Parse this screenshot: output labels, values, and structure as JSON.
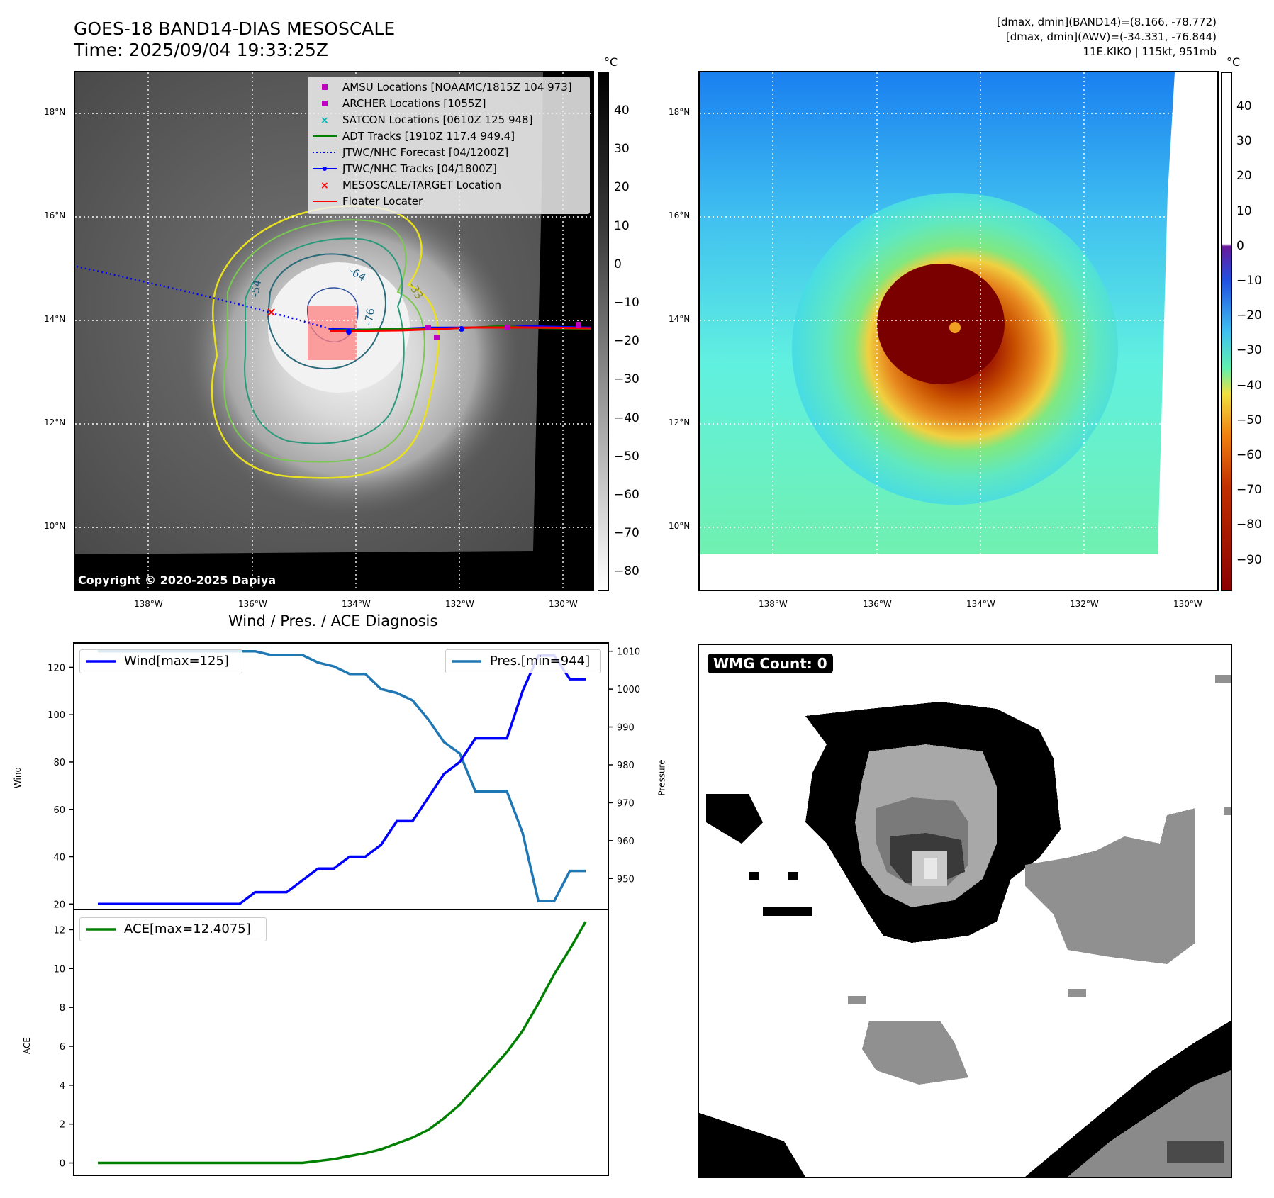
{
  "header": {
    "title_line1": "GOES-18 BAND14-DIAS MESOSCALE",
    "title_line2": "Time: 2025/09/04 19:33:25Z",
    "info_line1": "[dmax, dmin](BAND14)=(8.166, -78.772)",
    "info_line2": "[dmax, dmin](AWV)=(-34.331, -76.844)",
    "info_line3": "11E.KIKO | 115kt, 951mb"
  },
  "map": {
    "lat_labels": [
      "18°N",
      "16°N",
      "14°N",
      "12°N",
      "10°N"
    ],
    "lon_labels": [
      "138°W",
      "136°W",
      "134°W",
      "132°W",
      "130°W"
    ],
    "contour_labels": [
      "-64",
      "-54",
      "-76",
      "-33"
    ],
    "copyright": "Copyright © 2020-2025 Dapiya",
    "colorbar_unit": "°C",
    "colorbar_ticks_gray": [
      "40",
      "30",
      "20",
      "10",
      "0",
      "−10",
      "−20",
      "−30",
      "−40",
      "−50",
      "−60",
      "−70",
      "−80"
    ],
    "colorbar_ticks_color": [
      "40",
      "30",
      "20",
      "10",
      "0",
      "−10",
      "−20",
      "−30",
      "−40",
      "−50",
      "−60",
      "−70",
      "−80",
      "−90"
    ],
    "legend": [
      {
        "label": "AMSU Locations [NOAAMC/1815Z 104 973]",
        "symbol": "square",
        "color": "#c000c0"
      },
      {
        "label": "ARCHER Locations [1055Z]",
        "symbol": "square",
        "color": "#c000c0"
      },
      {
        "label": "SATCON Locations [0610Z 125 948]",
        "symbol": "x",
        "color": "#00b0b0"
      },
      {
        "label": "ADT Tracks [1910Z 117.4 949.4]",
        "symbol": "line",
        "color": "#008000"
      },
      {
        "label": "JTWC/NHC Forecast [04/1200Z]",
        "symbol": "dotted",
        "color": "#0000ff"
      },
      {
        "label": "JTWC/NHC Tracks [04/1800Z]",
        "symbol": "line-dot",
        "color": "#0000ff"
      },
      {
        "label": "MESOSCALE/TARGET Location",
        "symbol": "x",
        "color": "#ff0000"
      },
      {
        "label": "Floater Locater",
        "symbol": "line",
        "color": "#ff0000"
      }
    ]
  },
  "diagnosis": {
    "title": "Wind / Pres. / ACE Diagnosis",
    "wind_ylabel": "Wind",
    "pres_ylabel": "Pressure",
    "ace_ylabel": "ACE",
    "wind_legend": "Wind[max=125]",
    "pres_legend": "Pres.[min=944]",
    "ace_legend": "ACE[max=12.4075]"
  },
  "wmg": {
    "label": "WMG Count: 0"
  },
  "chart_data": [
    {
      "type": "line",
      "title": "Wind / Pres. / ACE Diagnosis",
      "ylabel": "Wind",
      "ylim": [
        18,
        130
      ],
      "yticks": [
        20,
        40,
        60,
        80,
        100,
        120
      ],
      "series": [
        {
          "name": "Wind[max=125]",
          "color": "#0000ff",
          "values": [
            20,
            20,
            20,
            20,
            20,
            20,
            20,
            20,
            20,
            20,
            25,
            25,
            25,
            30,
            35,
            35,
            40,
            40,
            45,
            55,
            55,
            65,
            75,
            80,
            90,
            90,
            90,
            110,
            125,
            125,
            115,
            115
          ]
        }
      ]
    },
    {
      "type": "line",
      "ylabel": "Pressure",
      "ylim": [
        942,
        1012
      ],
      "yticks": [
        950,
        960,
        970,
        980,
        990,
        1000,
        1010
      ],
      "series": [
        {
          "name": "Pres.[min=944]",
          "color": "#1f77b4",
          "values": [
            1010,
            1010,
            1010,
            1010,
            1010,
            1010,
            1010,
            1010,
            1010,
            1010,
            1010,
            1009,
            1009,
            1009,
            1007,
            1006,
            1004,
            1004,
            1000,
            999,
            997,
            992,
            986,
            983,
            973,
            973,
            973,
            962,
            944,
            944,
            952,
            952
          ]
        }
      ]
    },
    {
      "type": "line",
      "ylabel": "ACE",
      "ylim": [
        -0.6,
        13.0
      ],
      "yticks": [
        0,
        2,
        4,
        6,
        8,
        10,
        12
      ],
      "series": [
        {
          "name": "ACE[max=12.4075]",
          "color": "#008000",
          "values": [
            0,
            0,
            0,
            0,
            0,
            0,
            0,
            0,
            0,
            0,
            0,
            0,
            0,
            0,
            0.1,
            0.2,
            0.35,
            0.5,
            0.7,
            1.0,
            1.3,
            1.7,
            2.3,
            3.0,
            3.9,
            4.8,
            5.7,
            6.8,
            8.2,
            9.7,
            11.0,
            12.4075
          ]
        }
      ]
    }
  ]
}
